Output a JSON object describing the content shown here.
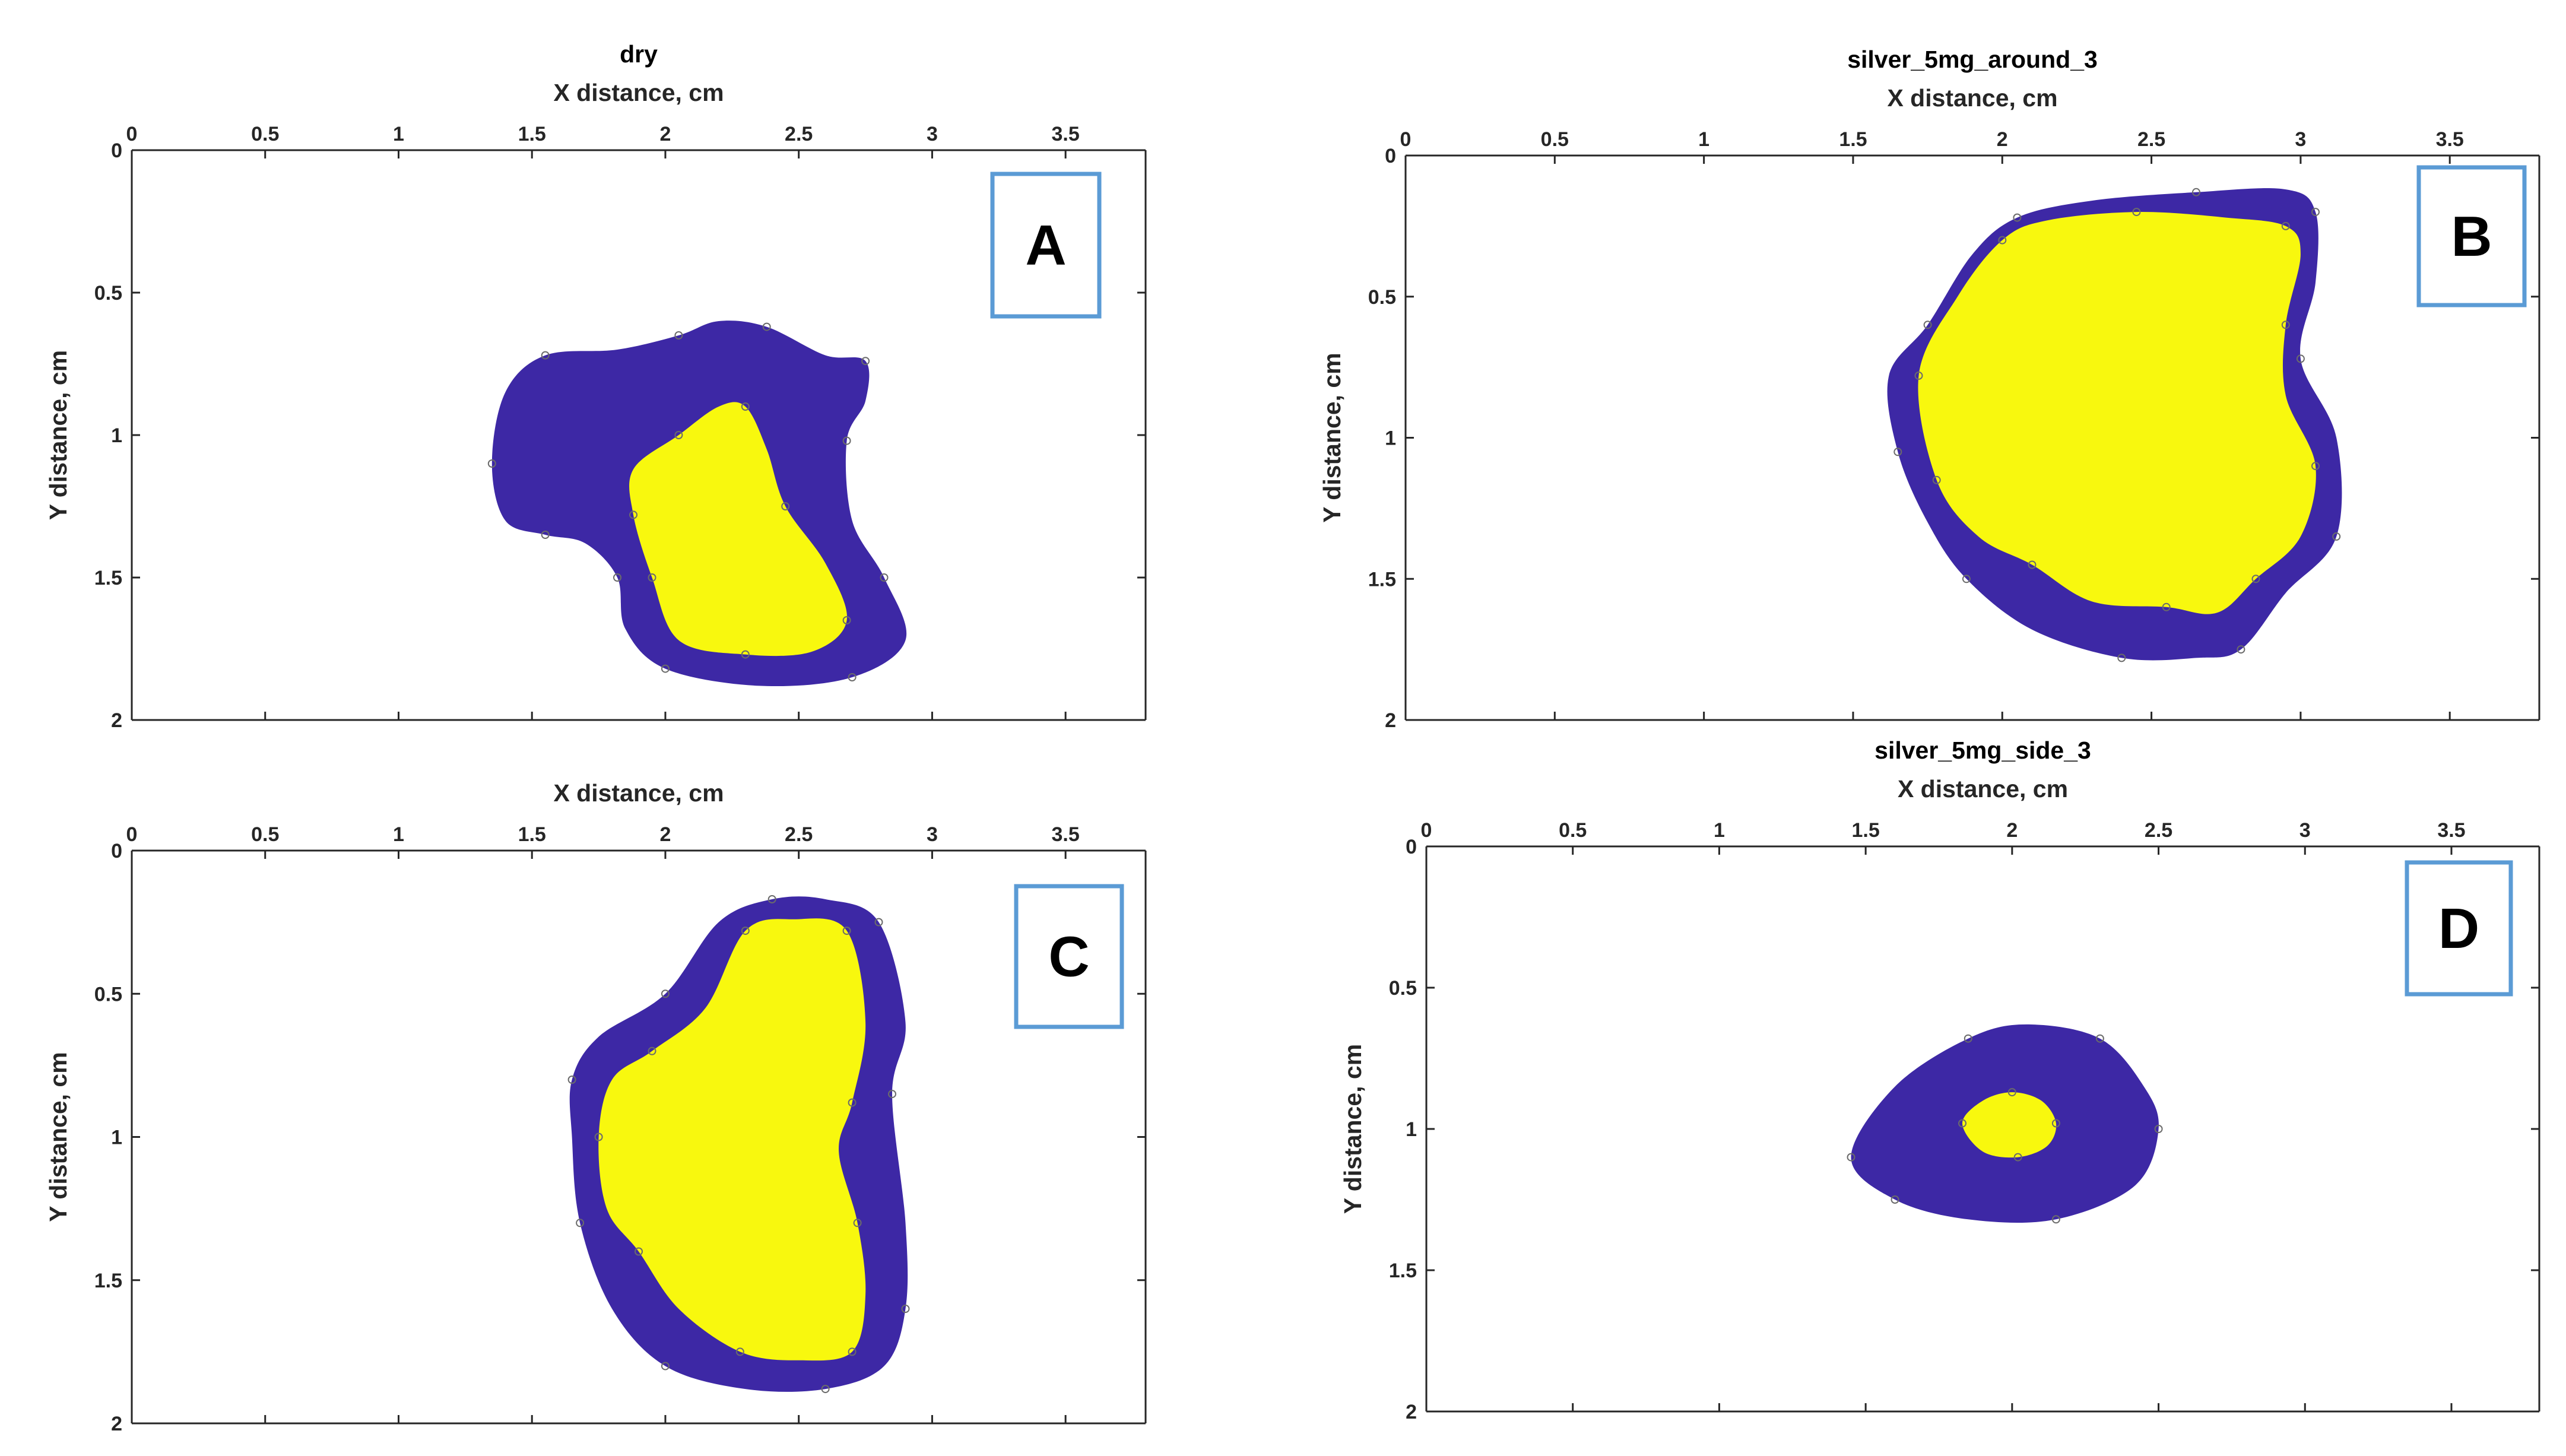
{
  "colors": {
    "outer_region": "#3d28a5",
    "inner_region": "#f8f80e",
    "axes": "#262626",
    "panel_box_border": "#5b9bd5"
  },
  "chart_data": [
    {
      "id": "A",
      "type": "area",
      "title": "dry",
      "panel_label": "A",
      "xlabel": "X distance, cm",
      "ylabel": "Y distance, cm",
      "xlim": [
        0,
        3.8
      ],
      "ylim": [
        0,
        2
      ],
      "y_reversed": true,
      "grid": false,
      "x_ticks": [
        "0",
        "0.5",
        "1",
        "1.5",
        "2",
        "2.5",
        "3",
        "3.5"
      ],
      "y_ticks": [
        "0",
        "0.5",
        "1",
        "1.5",
        "2"
      ],
      "series": [
        {
          "name": "outer",
          "points": [
            [
              1.35,
              1.1
            ],
            [
              1.4,
              0.85
            ],
            [
              1.55,
              0.72
            ],
            [
              1.82,
              0.7
            ],
            [
              2.05,
              0.65
            ],
            [
              2.2,
              0.6
            ],
            [
              2.38,
              0.62
            ],
            [
              2.6,
              0.72
            ],
            [
              2.75,
              0.74
            ],
            [
              2.75,
              0.88
            ],
            [
              2.68,
              1.02
            ],
            [
              2.7,
              1.3
            ],
            [
              2.82,
              1.5
            ],
            [
              2.9,
              1.72
            ],
            [
              2.7,
              1.85
            ],
            [
              2.35,
              1.88
            ],
            [
              2.0,
              1.82
            ],
            [
              1.85,
              1.68
            ],
            [
              1.82,
              1.5
            ],
            [
              1.7,
              1.38
            ],
            [
              1.55,
              1.35
            ],
            [
              1.4,
              1.3
            ]
          ]
        },
        {
          "name": "inner",
          "points": [
            [
              1.88,
              1.28
            ],
            [
              1.88,
              1.12
            ],
            [
              2.05,
              1.0
            ],
            [
              2.2,
              0.9
            ],
            [
              2.3,
              0.9
            ],
            [
              2.38,
              1.05
            ],
            [
              2.45,
              1.25
            ],
            [
              2.6,
              1.45
            ],
            [
              2.68,
              1.65
            ],
            [
              2.55,
              1.76
            ],
            [
              2.3,
              1.77
            ],
            [
              2.05,
              1.72
            ],
            [
              1.95,
              1.5
            ]
          ]
        }
      ]
    },
    {
      "id": "B",
      "type": "area",
      "title": "silver_5mg_around_3",
      "panel_label": "B",
      "xlabel": "X distance, cm",
      "ylabel": "Y distance, cm",
      "xlim": [
        0,
        3.8
      ],
      "ylim": [
        0,
        2
      ],
      "y_reversed": true,
      "grid": false,
      "x_ticks": [
        "0",
        "0.5",
        "1",
        "1.5",
        "2",
        "2.5",
        "3",
        "3.5"
      ],
      "y_ticks": [
        "0",
        "0.5",
        "1",
        "1.5",
        "2"
      ],
      "series": [
        {
          "name": "outer",
          "points": [
            [
              1.75,
              0.6
            ],
            [
              1.9,
              0.35
            ],
            [
              2.05,
              0.22
            ],
            [
              2.3,
              0.16
            ],
            [
              2.65,
              0.13
            ],
            [
              2.95,
              0.12
            ],
            [
              3.05,
              0.2
            ],
            [
              3.05,
              0.45
            ],
            [
              3.0,
              0.72
            ],
            [
              3.12,
              1.0
            ],
            [
              3.12,
              1.35
            ],
            [
              2.95,
              1.55
            ],
            [
              2.8,
              1.75
            ],
            [
              2.65,
              1.78
            ],
            [
              2.4,
              1.78
            ],
            [
              2.1,
              1.68
            ],
            [
              1.88,
              1.5
            ],
            [
              1.75,
              1.3
            ],
            [
              1.65,
              1.05
            ],
            [
              1.62,
              0.78
            ]
          ]
        },
        {
          "name": "inner",
          "points": [
            [
              1.72,
              0.78
            ],
            [
              1.85,
              0.5
            ],
            [
              2.0,
              0.3
            ],
            [
              2.15,
              0.23
            ],
            [
              2.45,
              0.2
            ],
            [
              2.75,
              0.22
            ],
            [
              2.95,
              0.25
            ],
            [
              3.0,
              0.35
            ],
            [
              2.95,
              0.6
            ],
            [
              2.95,
              0.85
            ],
            [
              3.05,
              1.1
            ],
            [
              3.0,
              1.35
            ],
            [
              2.85,
              1.5
            ],
            [
              2.72,
              1.62
            ],
            [
              2.55,
              1.6
            ],
            [
              2.3,
              1.58
            ],
            [
              2.1,
              1.45
            ],
            [
              1.92,
              1.35
            ],
            [
              1.78,
              1.15
            ]
          ]
        }
      ]
    },
    {
      "id": "C",
      "type": "area",
      "title": "",
      "panel_label": "C",
      "xlabel": "X distance, cm",
      "ylabel": "Y distance, cm",
      "xlim": [
        0,
        3.8
      ],
      "ylim": [
        0,
        2
      ],
      "y_reversed": true,
      "grid": false,
      "x_ticks": [
        "0",
        "0.5",
        "1",
        "1.5",
        "2",
        "2.5",
        "3",
        "3.5"
      ],
      "y_ticks": [
        "0",
        "0.5",
        "1",
        "1.5",
        "2"
      ],
      "series": [
        {
          "name": "outer",
          "points": [
            [
              1.65,
              0.8
            ],
            [
              1.75,
              0.65
            ],
            [
              2.0,
              0.5
            ],
            [
              2.2,
              0.25
            ],
            [
              2.4,
              0.17
            ],
            [
              2.6,
              0.17
            ],
            [
              2.8,
              0.25
            ],
            [
              2.9,
              0.6
            ],
            [
              2.85,
              0.85
            ],
            [
              2.9,
              1.3
            ],
            [
              2.9,
              1.6
            ],
            [
              2.82,
              1.8
            ],
            [
              2.6,
              1.88
            ],
            [
              2.3,
              1.88
            ],
            [
              2.0,
              1.8
            ],
            [
              1.8,
              1.6
            ],
            [
              1.68,
              1.3
            ],
            [
              1.65,
              1.0
            ]
          ]
        },
        {
          "name": "inner",
          "points": [
            [
              1.75,
              1.0
            ],
            [
              1.8,
              0.8
            ],
            [
              1.95,
              0.7
            ],
            [
              2.15,
              0.55
            ],
            [
              2.3,
              0.28
            ],
            [
              2.48,
              0.24
            ],
            [
              2.68,
              0.28
            ],
            [
              2.75,
              0.6
            ],
            [
              2.7,
              0.88
            ],
            [
              2.65,
              1.05
            ],
            [
              2.72,
              1.3
            ],
            [
              2.75,
              1.55
            ],
            [
              2.7,
              1.75
            ],
            [
              2.5,
              1.78
            ],
            [
              2.28,
              1.75
            ],
            [
              2.05,
              1.6
            ],
            [
              1.9,
              1.4
            ],
            [
              1.78,
              1.25
            ]
          ]
        }
      ]
    },
    {
      "id": "D",
      "type": "area",
      "title": "silver_5mg_side_3",
      "panel_label": "D",
      "xlabel": "X distance, cm",
      "ylabel": "Y distance, cm",
      "xlim": [
        0,
        3.8
      ],
      "ylim": [
        0,
        2
      ],
      "y_reversed": true,
      "grid": false,
      "x_ticks": [
        "0",
        "0.5",
        "1",
        "1.5",
        "2",
        "2.5",
        "3",
        "3.5"
      ],
      "y_ticks": [
        "0",
        "0.5",
        "1",
        "1.5",
        "2"
      ],
      "series": [
        {
          "name": "outer",
          "points": [
            [
              1.45,
              1.1
            ],
            [
              1.6,
              0.85
            ],
            [
              1.85,
              0.68
            ],
            [
              2.05,
              0.63
            ],
            [
              2.3,
              0.68
            ],
            [
              2.45,
              0.85
            ],
            [
              2.5,
              1.0
            ],
            [
              2.42,
              1.2
            ],
            [
              2.15,
              1.32
            ],
            [
              1.85,
              1.32
            ],
            [
              1.6,
              1.25
            ]
          ]
        },
        {
          "name": "inner",
          "points": [
            [
              1.83,
              0.98
            ],
            [
              1.9,
              0.9
            ],
            [
              2.0,
              0.87
            ],
            [
              2.1,
              0.9
            ],
            [
              2.15,
              0.98
            ],
            [
              2.12,
              1.06
            ],
            [
              2.02,
              1.1
            ],
            [
              1.9,
              1.08
            ]
          ]
        }
      ]
    }
  ]
}
